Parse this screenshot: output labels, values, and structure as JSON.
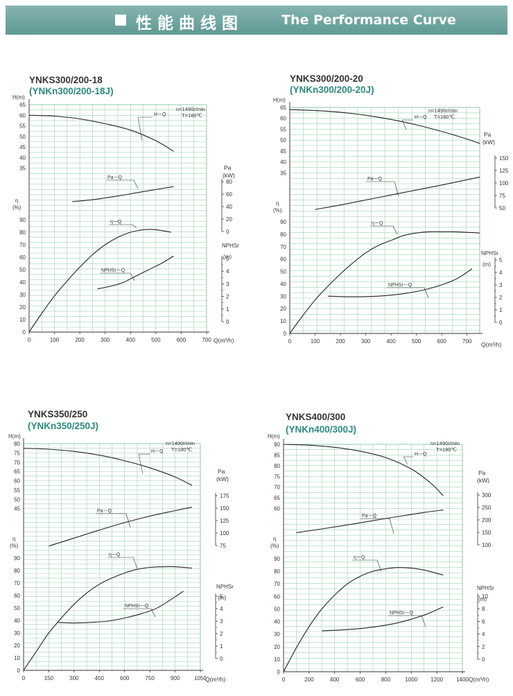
{
  "header": {
    "title_zh": "性能曲线图",
    "title_en": "The Performance Curve",
    "colors": {
      "banner": "#6fa6a1",
      "grid": "#9bd3b0",
      "curve": "#222222"
    }
  },
  "chart_data": [
    {
      "type": "line",
      "title": "YNKS300/200-18",
      "subtitle": "(YNKn300/200-18J)",
      "conditions": [
        "n=1490r/min",
        "T=180℃"
      ],
      "x": {
        "label": "Q(m³/h)",
        "ticks": [
          0,
          100,
          200,
          300,
          400,
          500,
          600,
          700
        ],
        "range": [
          0,
          700
        ]
      },
      "axes": {
        "H": {
          "label": "H(m)",
          "ticks": [
            35,
            40,
            45,
            50,
            55,
            60,
            65
          ],
          "range": [
            30,
            65
          ]
        },
        "eta": {
          "label": "η",
          "unit": "(%)",
          "ticks": [
            0,
            10,
            20,
            30,
            40,
            50,
            60,
            70,
            80,
            90
          ],
          "range": [
            0,
            90
          ]
        },
        "Pa": {
          "label": "Pa",
          "unit": "(kW)",
          "ticks": [
            0,
            20,
            40,
            60,
            80
          ]
        },
        "NPSH": {
          "label": "NPHSr",
          "unit": "(m)",
          "ticks": [
            0,
            1,
            2,
            3,
            4,
            5
          ]
        }
      },
      "series": [
        {
          "name": "H－Q",
          "axis": "H",
          "x": [
            0,
            100,
            200,
            300,
            400,
            500,
            570
          ],
          "y": [
            60,
            59.6,
            58.3,
            56,
            53,
            48,
            43
          ]
        },
        {
          "name": "Pa－Q",
          "axis": "Pa",
          "x": [
            170,
            250,
            350,
            450,
            570
          ],
          "y": [
            48,
            51,
            57,
            64,
            72
          ]
        },
        {
          "name": "η－Q",
          "axis": "eta",
          "x": [
            0,
            50,
            100,
            150,
            200,
            250,
            300,
            350,
            400,
            450,
            500,
            560
          ],
          "y": [
            0,
            15,
            29,
            41,
            52,
            62,
            70,
            76,
            80,
            82,
            82,
            80
          ]
        },
        {
          "name": "NPHSr－Q",
          "axis": "NPSH",
          "x": [
            270,
            320,
            370,
            420,
            470,
            520,
            570
          ],
          "y": [
            2.6,
            2.8,
            3.1,
            3.6,
            4.1,
            4.6,
            5.2
          ]
        }
      ]
    },
    {
      "type": "line",
      "title": "YNKS300/200-20",
      "subtitle": "(YNKn300/200-20J)",
      "conditions": [
        "n=1490r/min",
        "T=180℃"
      ],
      "x": {
        "label": "Q(m³/h)",
        "ticks": [
          0,
          100,
          200,
          300,
          400,
          500,
          600,
          700
        ],
        "range": [
          0,
          750
        ]
      },
      "axes": {
        "H": {
          "label": "H(m)",
          "ticks": [
            35,
            40,
            45,
            50,
            55,
            60,
            65
          ],
          "range": [
            30,
            65
          ]
        },
        "eta": {
          "label": "η",
          "unit": "(%)",
          "ticks": [
            0,
            10,
            20,
            30,
            40,
            50,
            60,
            70,
            80,
            90
          ],
          "range": [
            0,
            90
          ]
        },
        "Pa": {
          "label": "Pa",
          "unit": "(kW)",
          "ticks": [
            50,
            75,
            100,
            125,
            150
          ]
        },
        "NPSH": {
          "label": "NPHSr",
          "unit": "(m)",
          "ticks": [
            0,
            1,
            2,
            3,
            4,
            5
          ]
        }
      },
      "series": [
        {
          "name": "H－Q",
          "axis": "H",
          "x": [
            0,
            100,
            200,
            300,
            400,
            500,
            600,
            700,
            750
          ],
          "y": [
            64,
            63.6,
            62.8,
            61.4,
            59.5,
            57,
            54,
            50.5,
            48.5
          ]
        },
        {
          "name": "Pa－Q",
          "axis": "Pa",
          "x": [
            100,
            200,
            300,
            400,
            500,
            600,
            750
          ],
          "y": [
            47,
            56,
            66,
            76,
            86,
            96,
            112
          ]
        },
        {
          "name": "η－Q",
          "axis": "eta",
          "x": [
            0,
            50,
            100,
            150,
            200,
            250,
            300,
            350,
            400,
            450,
            500,
            550,
            600,
            650,
            750
          ],
          "y": [
            0,
            14,
            27,
            38,
            48,
            57,
            65,
            71,
            75,
            79,
            81,
            82,
            82,
            82,
            81
          ]
        },
        {
          "name": "NPHSr－Q",
          "axis": "NPSH",
          "x": [
            150,
            250,
            350,
            450,
            550,
            650,
            720
          ],
          "y": [
            2.1,
            2.05,
            2.1,
            2.3,
            2.7,
            3.4,
            4.3
          ]
        }
      ]
    },
    {
      "type": "line",
      "title": "YNKS350/250",
      "subtitle": "(YNKn350/250J)",
      "conditions": [
        "n=1490r/min",
        "T=180℃"
      ],
      "x": {
        "label": "Q(m³/h)",
        "ticks": [
          0,
          150,
          300,
          450,
          600,
          750,
          900,
          1050
        ],
        "range": [
          0,
          1050
        ]
      },
      "axes": {
        "H": {
          "label": "H(m)",
          "ticks": [
            45,
            50,
            55,
            60,
            65,
            70,
            75,
            80
          ],
          "range": [
            40,
            80
          ]
        },
        "eta": {
          "label": "η",
          "unit": "(%)",
          "ticks": [
            0,
            10,
            20,
            30,
            40,
            50,
            60,
            70,
            80,
            90
          ],
          "range": [
            0,
            90
          ]
        },
        "Pa": {
          "label": "Pa",
          "unit": "(kW)",
          "ticks": [
            75,
            100,
            125,
            150,
            175
          ]
        },
        "NPSH": {
          "label": "NPHSr",
          "unit": "(m)",
          "ticks": [
            0,
            1,
            2,
            3,
            4,
            5
          ]
        }
      },
      "series": [
        {
          "name": "H－Q",
          "axis": "H",
          "x": [
            0,
            150,
            300,
            450,
            600,
            750,
            900,
            1000
          ],
          "y": [
            77.5,
            77,
            75.8,
            73.8,
            70.8,
            67,
            62,
            57.5
          ]
        },
        {
          "name": "Pa－Q",
          "axis": "Pa",
          "x": [
            150,
            300,
            450,
            600,
            750,
            900,
            1000
          ],
          "y": [
            74,
            90,
            106,
            121,
            134,
            145,
            152
          ]
        },
        {
          "name": "η－Q",
          "axis": "eta",
          "x": [
            0,
            75,
            150,
            225,
            300,
            375,
            450,
            525,
            600,
            675,
            750,
            825,
            900,
            1000
          ],
          "y": [
            0,
            15,
            30,
            42,
            53,
            62,
            69,
            74,
            78,
            81,
            82.5,
            83,
            83,
            82
          ]
        },
        {
          "name": "NPHSr－Q",
          "axis": "NPSH",
          "x": [
            200,
            300,
            400,
            500,
            600,
            700,
            800,
            950
          ],
          "y": [
            2.9,
            2.85,
            2.9,
            3.0,
            3.25,
            3.6,
            4.1,
            5.4
          ]
        }
      ]
    },
    {
      "type": "line",
      "title": "YNKS400/300",
      "subtitle": "(YNKn400/300J)",
      "conditions": [
        "n=1490r/min",
        "T=180℃"
      ],
      "x": {
        "label": "Q(m³/h)",
        "ticks": [
          0,
          200,
          400,
          600,
          800,
          1000,
          1200,
          1400
        ],
        "range": [
          0,
          1400
        ]
      },
      "axes": {
        "H": {
          "label": "H(m)",
          "ticks": [
            60,
            65,
            70,
            75,
            80,
            85,
            90
          ],
          "range": [
            55,
            90
          ]
        },
        "eta": {
          "label": "η",
          "unit": "(%)",
          "ticks": [
            0,
            10,
            20,
            30,
            40,
            50,
            60,
            70,
            80,
            90
          ],
          "range": [
            0,
            90
          ]
        },
        "Pa": {
          "label": "Pa",
          "unit": "(kW)",
          "ticks": [
            100,
            150,
            200,
            250,
            300
          ]
        },
        "NPSH": {
          "label": "NPHSr",
          "unit": "(m)",
          "ticks": [
            0,
            2,
            4,
            6,
            8,
            10
          ]
        }
      },
      "series": [
        {
          "name": "H－Q",
          "axis": "H",
          "x": [
            0,
            200,
            400,
            600,
            800,
            1000,
            1150,
            1250
          ],
          "y": [
            90,
            89.6,
            88.6,
            86.8,
            83.8,
            78.5,
            72,
            66
          ]
        },
        {
          "name": "Pa－Q",
          "axis": "Pa",
          "x": [
            100,
            300,
            500,
            700,
            900,
            1100,
            1250
          ],
          "y": [
            149,
            164,
            180,
            197,
            214,
            230,
            240
          ]
        },
        {
          "name": "η－Q",
          "axis": "eta",
          "x": [
            0,
            100,
            200,
            300,
            400,
            500,
            600,
            700,
            800,
            900,
            1000,
            1100,
            1250
          ],
          "y": [
            0,
            19,
            36,
            50,
            61,
            70,
            76,
            80,
            82,
            83,
            82.5,
            81,
            77
          ]
        },
        {
          "name": "NPHSr－Q",
          "axis": "NPSH",
          "x": [
            300,
            500,
            700,
            900,
            1100,
            1250
          ],
          "y": [
            4.5,
            4.7,
            5.1,
            5.8,
            7.0,
            8.3
          ]
        }
      ]
    }
  ]
}
